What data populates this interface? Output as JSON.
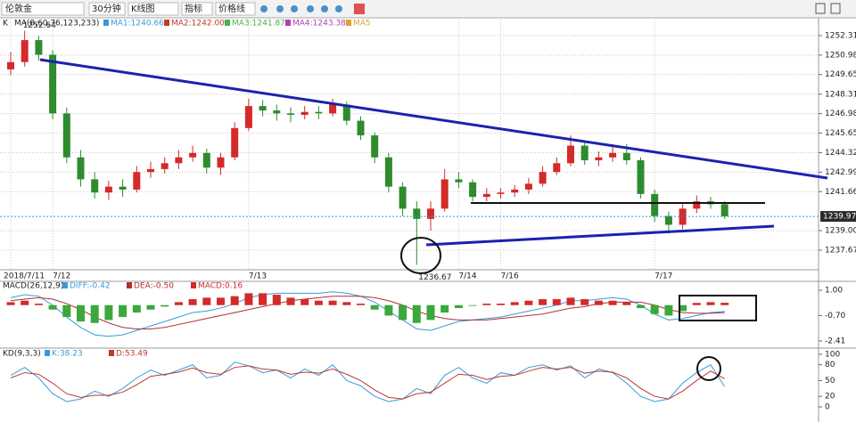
{
  "toolbar": [
    "伦敦金",
    "30分钟",
    "K线图",
    "指标",
    "价格线"
  ],
  "chart_data": [
    {
      "type": "candlestick",
      "title": "K",
      "subtitle": "MA(8,60,76,123,233)",
      "indicators": [
        {
          "label": "MA1:1240.66",
          "color": "#3a9ad9"
        },
        {
          "label": "MA2:1242.00",
          "color": "#c0392b"
        },
        {
          "label": "MA3:1241.87",
          "color": "#4caf50"
        },
        {
          "label": "MA4:1243.38",
          "color": "#b040b0"
        },
        {
          "label": "MA5",
          "color": "#e0a030"
        }
      ],
      "high_label": 1252.64,
      "low_label": 1236.67,
      "last_price": 1239.97,
      "up_color": "#d42a2a",
      "down_color": "#2e8b2e",
      "categories": [
        "2018/7/11",
        null,
        null,
        "7/12",
        null,
        null,
        null,
        null,
        null,
        null,
        null,
        null,
        null,
        null,
        null,
        null,
        null,
        "7/13",
        null,
        null,
        null,
        null,
        null,
        null,
        null,
        null,
        null,
        null,
        null,
        null,
        null,
        null,
        "7/14",
        null,
        null,
        "7/16",
        null,
        null,
        null,
        null,
        null,
        null,
        null,
        null,
        null,
        null,
        "7/17",
        null,
        null,
        null,
        null,
        null
      ],
      "ohlc": [
        [
          1250.0,
          1251.2,
          1249.6,
          1250.5
        ],
        [
          1250.5,
          1252.64,
          1250.2,
          1252.0
        ],
        [
          1252.0,
          1252.3,
          1250.6,
          1251.0
        ],
        [
          1251.0,
          1251.3,
          1246.6,
          1247.0
        ],
        [
          1247.0,
          1247.4,
          1243.6,
          1244.0
        ],
        [
          1244.0,
          1244.5,
          1242.0,
          1242.5
        ],
        [
          1242.5,
          1243.0,
          1241.2,
          1241.6
        ],
        [
          1241.6,
          1242.4,
          1241.1,
          1242.0
        ],
        [
          1242.0,
          1242.5,
          1241.3,
          1241.8
        ],
        [
          1241.8,
          1243.4,
          1241.6,
          1243.0
        ],
        [
          1243.0,
          1243.7,
          1242.6,
          1243.2
        ],
        [
          1243.2,
          1244.0,
          1242.9,
          1243.6
        ],
        [
          1243.6,
          1244.5,
          1243.2,
          1244.0
        ],
        [
          1244.0,
          1244.8,
          1243.7,
          1244.3
        ],
        [
          1244.3,
          1244.6,
          1242.9,
          1243.3
        ],
        [
          1243.3,
          1244.3,
          1242.8,
          1244.0
        ],
        [
          1244.0,
          1246.4,
          1243.8,
          1246.0
        ],
        [
          1246.0,
          1248.0,
          1245.8,
          1247.5
        ],
        [
          1247.5,
          1247.9,
          1246.8,
          1247.2
        ],
        [
          1247.2,
          1247.6,
          1246.5,
          1247.0
        ],
        [
          1247.0,
          1247.4,
          1246.4,
          1246.9
        ],
        [
          1246.9,
          1247.5,
          1246.6,
          1247.1
        ],
        [
          1247.1,
          1247.5,
          1246.6,
          1247.0
        ],
        [
          1247.0,
          1248.0,
          1246.8,
          1247.6
        ],
        [
          1247.6,
          1247.8,
          1246.2,
          1246.5
        ],
        [
          1246.5,
          1246.8,
          1245.2,
          1245.5
        ],
        [
          1245.5,
          1245.7,
          1243.6,
          1244.0
        ],
        [
          1244.0,
          1244.3,
          1241.6,
          1242.0
        ],
        [
          1242.0,
          1242.3,
          1240.0,
          1240.5
        ],
        [
          1240.5,
          1241.0,
          1236.67,
          1239.8
        ],
        [
          1239.8,
          1241.0,
          1239.0,
          1240.5
        ],
        [
          1240.5,
          1243.2,
          1240.3,
          1242.5
        ],
        [
          1242.5,
          1243.0,
          1241.9,
          1242.3
        ],
        [
          1242.3,
          1242.5,
          1241.0,
          1241.3
        ],
        [
          1241.3,
          1241.9,
          1241.0,
          1241.5
        ],
        [
          1241.5,
          1241.9,
          1241.2,
          1241.6
        ],
        [
          1241.6,
          1242.1,
          1241.3,
          1241.8
        ],
        [
          1241.8,
          1242.6,
          1241.5,
          1242.2
        ],
        [
          1242.2,
          1243.4,
          1242.0,
          1243.0
        ],
        [
          1243.0,
          1244.0,
          1242.8,
          1243.6
        ],
        [
          1243.6,
          1245.5,
          1243.4,
          1244.8
        ],
        [
          1244.8,
          1245.1,
          1243.5,
          1243.8
        ],
        [
          1243.8,
          1244.4,
          1243.4,
          1244.0
        ],
        [
          1244.0,
          1244.9,
          1243.7,
          1244.3
        ],
        [
          1244.3,
          1244.9,
          1243.5,
          1243.8
        ],
        [
          1243.8,
          1244.0,
          1241.2,
          1241.5
        ],
        [
          1241.5,
          1241.8,
          1239.6,
          1240.0
        ],
        [
          1240.0,
          1240.3,
          1238.8,
          1239.4
        ],
        [
          1239.4,
          1240.8,
          1239.1,
          1240.5
        ],
        [
          1240.5,
          1241.4,
          1240.2,
          1241.0
        ],
        [
          1241.0,
          1241.3,
          1240.5,
          1240.8
        ],
        [
          1240.8,
          1241.0,
          1239.8,
          1239.97
        ]
      ],
      "ylim": [
        1236.33,
        1253.4
      ],
      "yticks": [
        1252.31,
        1250.98,
        1249.65,
        1248.31,
        1246.98,
        1245.65,
        1244.32,
        1242.99,
        1241.66,
        {
          "value": 1239,
          "label": "1239.00"
        },
        1237.67
      ],
      "grid": true
    },
    {
      "type": "macd",
      "title": "MACD(26,12,9)",
      "up_color": "#d42a2a",
      "down_color": "#3aa83a",
      "series": [
        {
          "name": "DIFF:-0.42",
          "color": "#3a9ad9",
          "values": [
            0.5,
            0.7,
            0.6,
            0,
            -0.8,
            -1.5,
            -2,
            -2.1,
            -2,
            -1.7,
            -1.4,
            -1.1,
            -0.8,
            -0.5,
            -0.4,
            -0.2,
            0.1,
            0.5,
            0.7,
            0.8,
            0.8,
            0.8,
            0.8,
            0.9,
            0.8,
            0.6,
            0.2,
            -0.4,
            -1,
            -1.6,
            -1.7,
            -1.4,
            -1.1,
            -1,
            -0.9,
            -0.8,
            -0.6,
            -0.4,
            -0.2,
            0,
            0.3,
            0.3,
            0.4,
            0.5,
            0.4,
            0,
            -0.6,
            -1,
            -0.9,
            -0.7,
            -0.5,
            -0.42
          ]
        },
        {
          "name": "DEA:-0.50",
          "color": "#b03030",
          "values": [
            0.3,
            0.4,
            0.5,
            0.4,
            0.1,
            -0.3,
            -0.8,
            -1.2,
            -1.5,
            -1.6,
            -1.6,
            -1.5,
            -1.3,
            -1.1,
            -0.9,
            -0.7,
            -0.5,
            -0.3,
            -0.1,
            0.1,
            0.3,
            0.4,
            0.5,
            0.6,
            0.6,
            0.6,
            0.5,
            0.3,
            0,
            -0.4,
            -0.7,
            -0.9,
            -1,
            -1,
            -1,
            -0.9,
            -0.8,
            -0.7,
            -0.6,
            -0.4,
            -0.2,
            -0.1,
            0.1,
            0.2,
            0.2,
            0.2,
            0,
            -0.3,
            -0.5,
            -0.55,
            -0.55,
            -0.5
          ]
        },
        {
          "name": "MACD:0.16",
          "color": "#d42a2a",
          "histogram": true,
          "values": [
            0.2,
            0.3,
            0.1,
            -0.3,
            -0.8,
            -1.1,
            -1.2,
            -1.0,
            -0.8,
            -0.5,
            -0.3,
            -0.1,
            0.2,
            0.4,
            0.5,
            0.5,
            0.6,
            0.8,
            0.8,
            0.7,
            0.5,
            0.4,
            0.3,
            0.3,
            0.2,
            0.1,
            -0.3,
            -0.7,
            -1,
            -1.2,
            -1,
            -0.5,
            -0.2,
            -0.05,
            0.1,
            0.1,
            0.2,
            0.3,
            0.4,
            0.4,
            0.5,
            0.4,
            0.3,
            0.3,
            0.2,
            -0.2,
            -0.6,
            -0.7,
            -0.4,
            0.15,
            0.2,
            0.16
          ]
        }
      ],
      "ylim": [
        -2.83,
        1.6
      ],
      "yticks": [
        {
          "value": 1,
          "label": "1.00"
        },
        {
          "value": -0.7,
          "label": "-0.70"
        },
        -2.41
      ]
    },
    {
      "type": "line",
      "title": "KD(9,3,3)",
      "series": [
        {
          "name": "K:38.23",
          "color": "#3a9ad9",
          "values": [
            60,
            75,
            55,
            25,
            10,
            15,
            30,
            20,
            35,
            55,
            70,
            60,
            70,
            80,
            55,
            60,
            85,
            78,
            65,
            70,
            55,
            72,
            60,
            80,
            50,
            40,
            20,
            10,
            15,
            35,
            25,
            60,
            75,
            55,
            45,
            65,
            60,
            75,
            80,
            70,
            78,
            55,
            72,
            65,
            45,
            20,
            10,
            15,
            45,
            65,
            80,
            38.23
          ]
        },
        {
          "name": "D:53.49",
          "color": "#c0392b",
          "values": [
            55,
            65,
            62,
            45,
            25,
            18,
            22,
            22,
            28,
            42,
            58,
            62,
            66,
            74,
            65,
            62,
            75,
            78,
            72,
            70,
            62,
            66,
            64,
            72,
            62,
            50,
            32,
            18,
            15,
            25,
            28,
            45,
            62,
            60,
            52,
            58,
            60,
            68,
            75,
            72,
            75,
            64,
            68,
            66,
            55,
            35,
            20,
            15,
            30,
            50,
            68,
            53.49
          ]
        }
      ],
      "ylim": [
        -22,
        110
      ],
      "yticks": [
        100,
        80,
        50,
        20,
        0
      ]
    }
  ]
}
